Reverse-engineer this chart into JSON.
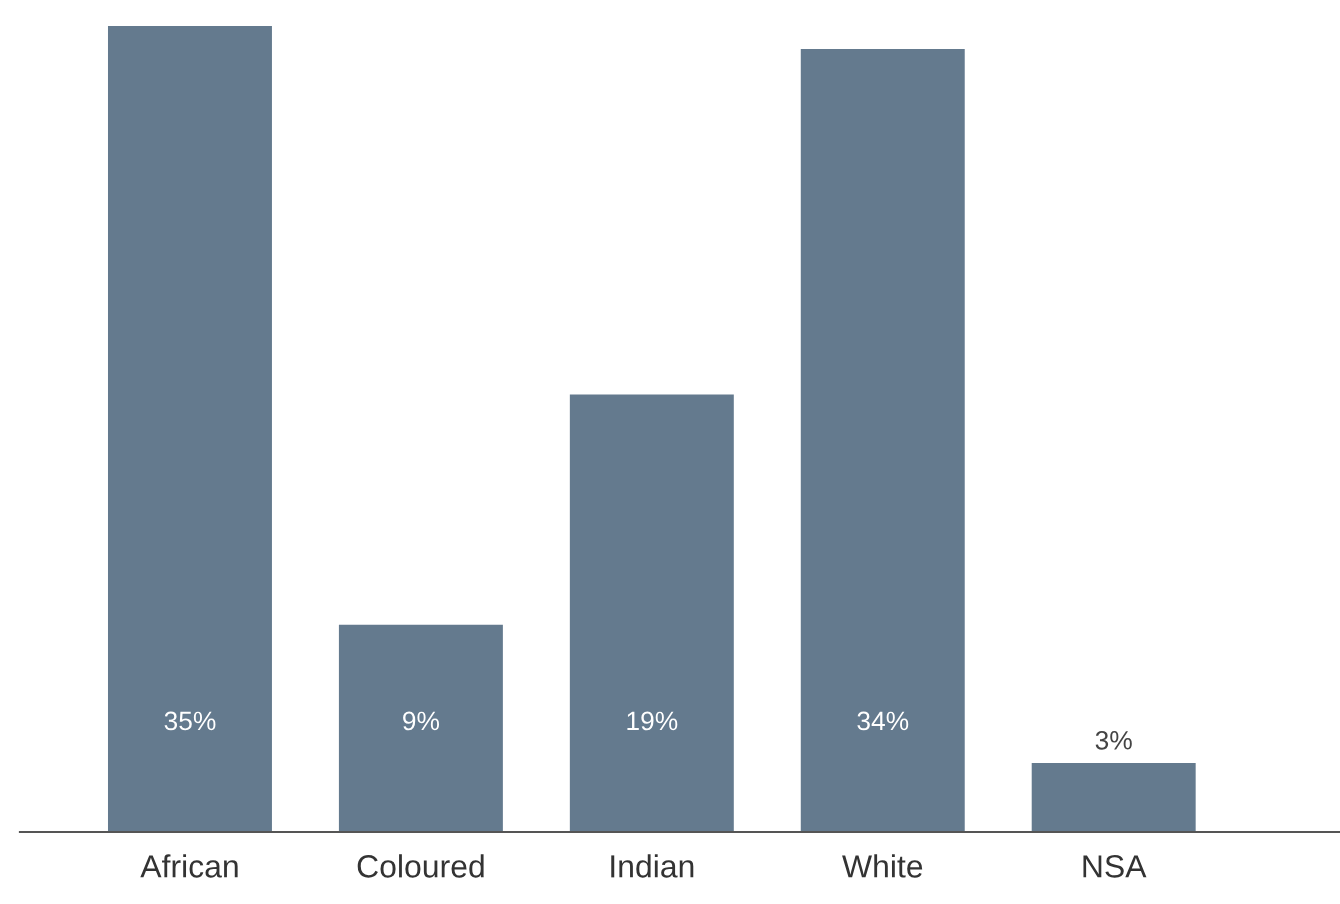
{
  "chart_data": {
    "type": "bar",
    "categories": [
      "African",
      "Coloured",
      "Indian",
      "White",
      "NSA"
    ],
    "values": [
      35,
      9,
      19,
      34,
      3
    ],
    "value_labels": [
      "35%",
      "9%",
      "19%",
      "34%",
      "3%"
    ],
    "color": "#647a8e",
    "grid": false,
    "legend": false
  }
}
